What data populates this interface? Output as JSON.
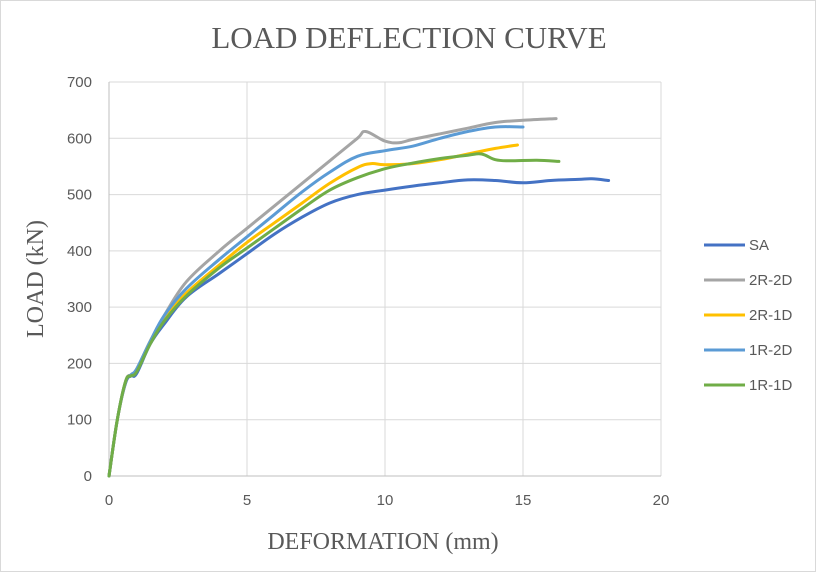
{
  "chart_data": {
    "type": "line",
    "title": "LOAD DEFLECTION CURVE",
    "xlabel": "DEFORMATION (mm)",
    "ylabel": "LOAD (kN)",
    "xlim": [
      0,
      20
    ],
    "ylim": [
      0,
      700
    ],
    "xticks": [
      0,
      5,
      10,
      15,
      20
    ],
    "yticks": [
      0,
      100,
      200,
      300,
      400,
      500,
      600,
      700
    ],
    "grid": true,
    "legend_position": "right",
    "series": [
      {
        "name": "SA",
        "color": "#4472c4",
        "x": [
          0,
          0.3,
          0.6,
          0.8,
          1.0,
          1.5,
          2.0,
          2.8,
          4.0,
          5.0,
          6.0,
          7.0,
          8.0,
          9.0,
          10.0,
          11.0,
          12.0,
          13.0,
          14.0,
          15.0,
          16.0,
          17.0,
          17.5,
          18.1
        ],
        "y": [
          0,
          100,
          165,
          178,
          182,
          235,
          270,
          318,
          360,
          395,
          430,
          460,
          485,
          500,
          508,
          515,
          521,
          526,
          525,
          521,
          525,
          527,
          528,
          525
        ]
      },
      {
        "name": "2R-2D",
        "color": "#a5a5a5",
        "x": [
          0,
          0.3,
          0.6,
          0.8,
          1.0,
          1.5,
          2.0,
          2.8,
          4.0,
          5.0,
          6.0,
          7.0,
          8.0,
          9.0,
          9.3,
          10.0,
          10.5,
          11.0,
          12.0,
          13.0,
          14.0,
          15.0,
          16.2
        ],
        "y": [
          0,
          100,
          168,
          180,
          190,
          240,
          285,
          345,
          400,
          440,
          480,
          520,
          560,
          600,
          612,
          595,
          592,
          598,
          608,
          618,
          628,
          632,
          635
        ]
      },
      {
        "name": "2R-1D",
        "color": "#ffc000",
        "x": [
          0,
          0.3,
          0.6,
          0.8,
          1.0,
          1.5,
          2.0,
          2.8,
          4.0,
          5.0,
          6.0,
          7.0,
          8.0,
          9.0,
          9.5,
          10.0,
          11.0,
          12.0,
          13.0,
          14.0,
          14.8
        ],
        "y": [
          0,
          100,
          168,
          180,
          188,
          240,
          280,
          325,
          375,
          415,
          450,
          485,
          520,
          548,
          555,
          553,
          555,
          562,
          572,
          582,
          588
        ]
      },
      {
        "name": "1R-2D",
        "color": "#5b9bd5",
        "x": [
          0,
          0.3,
          0.6,
          0.8,
          1.0,
          1.5,
          2.0,
          2.8,
          4.0,
          5.0,
          6.0,
          7.0,
          8.0,
          9.0,
          10.0,
          11.0,
          12.0,
          13.0,
          14.0,
          15.0
        ],
        "y": [
          0,
          100,
          168,
          180,
          190,
          240,
          285,
          333,
          385,
          425,
          465,
          505,
          540,
          568,
          578,
          586,
          600,
          612,
          620,
          620
        ]
      },
      {
        "name": "1R-1D",
        "color": "#70ad47",
        "x": [
          0,
          0.3,
          0.6,
          0.8,
          1.0,
          1.5,
          2.0,
          2.8,
          4.0,
          5.0,
          6.0,
          7.0,
          8.0,
          9.0,
          10.0,
          11.0,
          12.0,
          13.0,
          13.5,
          14.0,
          14.5,
          15.5,
          16.3
        ],
        "y": [
          0,
          100,
          168,
          178,
          185,
          235,
          275,
          320,
          370,
          405,
          440,
          475,
          508,
          530,
          546,
          556,
          564,
          570,
          572,
          562,
          560,
          561,
          559
        ]
      }
    ]
  }
}
